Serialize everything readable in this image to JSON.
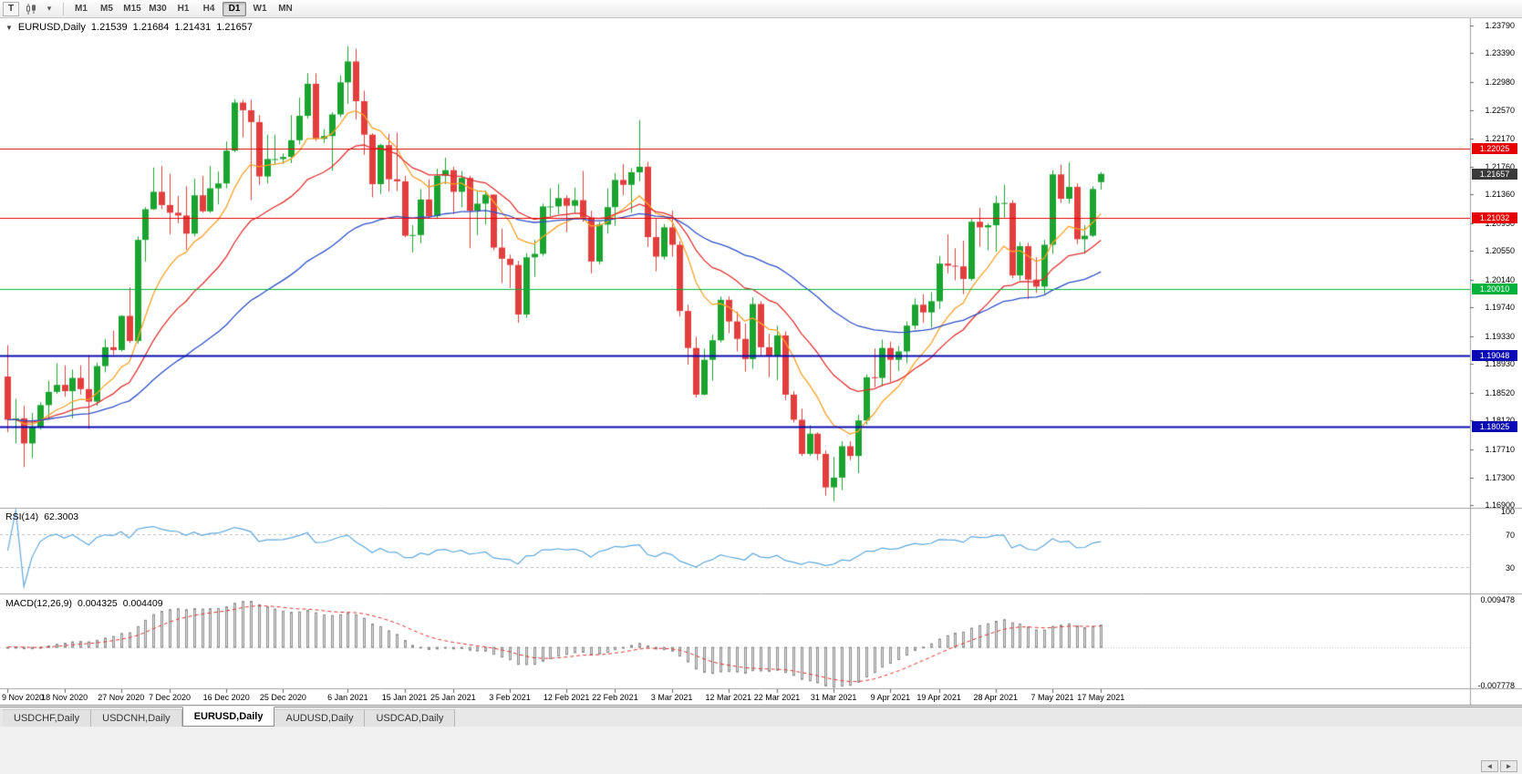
{
  "icons": {
    "one_click_trading": "▼",
    "tool_dropdown": "▾",
    "scroll_left": "◄",
    "scroll_right": "►"
  },
  "toolbar": {
    "handle_label": "T",
    "timeframes": [
      "M1",
      "M5",
      "M15",
      "M30",
      "H1",
      "H4",
      "D1",
      "W1",
      "MN"
    ],
    "active_timeframe": "D1"
  },
  "chart": {
    "title": {
      "symbol": "EURUSD,Daily",
      "open": "1.21539",
      "high": "1.21684",
      "low": "1.21431",
      "close": "1.21657"
    },
    "price_axis_labels": [
      "1.23790",
      "1.23390",
      "1.22980",
      "1.22570",
      "1.22170",
      "1.21760",
      "1.21360",
      "1.20950",
      "1.20550",
      "1.20140",
      "1.19740",
      "1.19330",
      "1.18930",
      "1.18520",
      "1.18120",
      "1.17710",
      "1.17300",
      "1.16900"
    ],
    "current_price_tag": {
      "value": "1.21657",
      "bg": "#3a3a3a"
    },
    "horizontal_lines": [
      {
        "price": 1.22025,
        "label": "1.22025",
        "color": "#e60000",
        "width": 1
      },
      {
        "price": 1.21032,
        "label": "1.21032",
        "color": "#e60000",
        "width": 1
      },
      {
        "price": 1.2001,
        "label": "1.20010",
        "color": "#00b33c",
        "width": 1
      },
      {
        "price": 1.19048,
        "label": "1.19048",
        "color": "#0a0ab4",
        "width": 2
      },
      {
        "price": 1.18025,
        "label": "1.18025",
        "color": "#0a0ab4",
        "width": 2
      }
    ]
  },
  "indicators": {
    "rsi": {
      "label": "RSI(14)",
      "value": "62.3003",
      "period": 14,
      "axis_labels": [
        {
          "value": 100,
          "text": "100"
        },
        {
          "value": 70,
          "text": "70"
        },
        {
          "value": 30,
          "text": "30"
        }
      ],
      "levels": [
        70,
        30
      ],
      "line_color": "#5fa8dc"
    },
    "macd": {
      "label": "MACD(12,26,9)",
      "macd_value": "0.004325",
      "signal_value": "0.004409",
      "fast": 12,
      "slow": 26,
      "signal_period": 9,
      "axis_top": "0.009478",
      "axis_bottom": "-0.007778",
      "scale_top": 0.009478,
      "scale_bottom": -0.007778,
      "histogram_fill": "#e4e4e4",
      "histogram_stroke": "#8e8e8e",
      "signal_color": "#e03030"
    }
  },
  "date_axis": [
    {
      "label": "9 Nov 2020",
      "index": 0
    },
    {
      "label": "18 Nov 2020",
      "index": 7
    },
    {
      "label": "27 Nov 2020",
      "index": 14
    },
    {
      "label": "7 Dec 2020",
      "index": 20
    },
    {
      "label": "16 Dec 2020",
      "index": 27
    },
    {
      "label": "25 Dec 2020",
      "index": 34
    },
    {
      "label": "6 Jan 2021",
      "index": 42
    },
    {
      "label": "15 Jan 2021",
      "index": 49
    },
    {
      "label": "25 Jan 2021",
      "index": 55
    },
    {
      "label": "3 Feb 2021",
      "index": 62
    },
    {
      "label": "12 Feb 2021",
      "index": 69
    },
    {
      "label": "22 Feb 2021",
      "index": 75
    },
    {
      "label": "3 Mar 2021",
      "index": 82
    },
    {
      "label": "12 Mar 2021",
      "index": 89
    },
    {
      "label": "22 Mar 2021",
      "index": 95
    },
    {
      "label": "31 Mar 2021",
      "index": 102
    },
    {
      "label": "9 Apr 2021",
      "index": 109
    },
    {
      "label": "19 Apr 2021",
      "index": 115
    },
    {
      "label": "28 Apr 2021",
      "index": 122
    },
    {
      "label": "7 May 2021",
      "index": 129
    },
    {
      "label": "17 May 2021",
      "index": 135
    }
  ],
  "tabs": [
    "USDCHF,Daily",
    "USDCNH,Daily",
    "EURUSD,Daily",
    "AUDUSD,Daily",
    "USDCAD,Daily"
  ],
  "active_tab": "EURUSD,Daily",
  "chart_data": {
    "type": "candlestick",
    "symbol": "EURUSD",
    "timeframe": "Daily",
    "price_range": {
      "top": 1.2389,
      "bottom": 1.1688
    },
    "bull_color": "#1aa32f",
    "bear_color": "#e23e3e",
    "overlays": [
      {
        "name": "ma-fast",
        "type": "ema",
        "period": 10,
        "color": "#f7a127"
      },
      {
        "name": "ma-mid",
        "type": "ema",
        "period": 21,
        "color": "#e03030"
      },
      {
        "name": "ma-slow",
        "type": "ema",
        "period": 50,
        "color": "#2f4fc6"
      }
    ],
    "candles": [
      [
        1.1875,
        1.192,
        1.1795,
        1.1813
      ],
      [
        1.1813,
        1.1843,
        1.1779,
        1.1815
      ],
      [
        1.1815,
        1.1833,
        1.1745,
        1.1779
      ],
      [
        1.1779,
        1.1823,
        1.1758,
        1.1803
      ],
      [
        1.1803,
        1.1838,
        1.1799,
        1.1834
      ],
      [
        1.1834,
        1.1869,
        1.1814,
        1.1853
      ],
      [
        1.1853,
        1.1894,
        1.185,
        1.1863
      ],
      [
        1.1863,
        1.1891,
        1.1846,
        1.1854
      ],
      [
        1.1854,
        1.1885,
        1.1815,
        1.1873
      ],
      [
        1.1873,
        1.1891,
        1.1849,
        1.1857
      ],
      [
        1.1857,
        1.1906,
        1.18,
        1.1839
      ],
      [
        1.1839,
        1.1895,
        1.1833,
        1.189
      ],
      [
        1.189,
        1.1929,
        1.1881,
        1.1917
      ],
      [
        1.1917,
        1.1941,
        1.1906,
        1.1913
      ],
      [
        1.1913,
        1.1963,
        1.1911,
        1.1962
      ],
      [
        1.1962,
        1.2003,
        1.1923,
        1.1926
      ],
      [
        1.1926,
        1.2076,
        1.1922,
        1.2071
      ],
      [
        1.2071,
        1.2118,
        1.204,
        1.2115
      ],
      [
        1.2115,
        1.2175,
        1.2114,
        1.214
      ],
      [
        1.214,
        1.2177,
        1.2115,
        1.2121
      ],
      [
        1.2121,
        1.2166,
        1.2079,
        1.211
      ],
      [
        1.211,
        1.2134,
        1.2095,
        1.2106
      ],
      [
        1.2106,
        1.2148,
        1.2057,
        1.208
      ],
      [
        1.208,
        1.2159,
        1.2076,
        1.2135
      ],
      [
        1.2135,
        1.2163,
        1.211,
        1.2112
      ],
      [
        1.2112,
        1.2177,
        1.211,
        1.2145
      ],
      [
        1.2145,
        1.2169,
        1.2122,
        1.2152
      ],
      [
        1.2152,
        1.2212,
        1.2145,
        1.2199
      ],
      [
        1.2199,
        1.2273,
        1.2197,
        1.2268
      ],
      [
        1.2268,
        1.2272,
        1.2218,
        1.2257
      ],
      [
        1.2257,
        1.2272,
        1.2128,
        1.224
      ],
      [
        1.224,
        1.225,
        1.215,
        1.2162
      ],
      [
        1.2162,
        1.2222,
        1.2152,
        1.2187
      ],
      [
        1.2187,
        1.2222,
        1.2179,
        1.2187
      ],
      [
        1.2187,
        1.2195,
        1.218,
        1.219
      ],
      [
        1.219,
        1.225,
        1.2181,
        1.2214
      ],
      [
        1.2214,
        1.2275,
        1.2208,
        1.2249
      ],
      [
        1.2249,
        1.231,
        1.2245,
        1.2295
      ],
      [
        1.2295,
        1.231,
        1.2213,
        1.2216
      ],
      [
        1.2216,
        1.223,
        1.221,
        1.222
      ],
      [
        1.222,
        1.2254,
        1.217,
        1.2251
      ],
      [
        1.2251,
        1.2307,
        1.2247,
        1.2297
      ],
      [
        1.2297,
        1.2349,
        1.2266,
        1.2327
      ],
      [
        1.2327,
        1.2345,
        1.2244,
        1.227
      ],
      [
        1.227,
        1.2285,
        1.2193,
        1.2222
      ],
      [
        1.2222,
        1.2224,
        1.2132,
        1.2151
      ],
      [
        1.2151,
        1.2209,
        1.2137,
        1.2207
      ],
      [
        1.2207,
        1.2223,
        1.214,
        1.2158
      ],
      [
        1.2158,
        1.2225,
        1.2141,
        1.2155
      ],
      [
        1.2155,
        1.2163,
        1.2075,
        1.2077
      ],
      [
        1.2077,
        1.2092,
        1.2053,
        1.2078
      ],
      [
        1.2078,
        1.2144,
        1.2066,
        1.2129
      ],
      [
        1.2129,
        1.2158,
        1.2102,
        1.2105
      ],
      [
        1.2105,
        1.2173,
        1.2101,
        1.2163
      ],
      [
        1.2163,
        1.2189,
        1.2151,
        1.2171
      ],
      [
        1.2171,
        1.2176,
        1.2108,
        1.214
      ],
      [
        1.214,
        1.217,
        1.2118,
        1.216
      ],
      [
        1.216,
        1.2163,
        1.2059,
        1.2113
      ],
      [
        1.2113,
        1.2142,
        1.2078,
        1.2123
      ],
      [
        1.2123,
        1.2142,
        1.2093,
        1.2136
      ],
      [
        1.2136,
        1.2136,
        1.2056,
        1.206
      ],
      [
        1.206,
        1.2087,
        1.2009,
        1.2044
      ],
      [
        1.2044,
        1.205,
        1.2002,
        1.2035
      ],
      [
        1.2035,
        1.2041,
        1.1952,
        1.1964
      ],
      [
        1.1964,
        1.2052,
        1.1959,
        1.2046
      ],
      [
        1.2046,
        1.2071,
        1.2018,
        1.2051
      ],
      [
        1.2051,
        1.2123,
        1.2048,
        1.2119
      ],
      [
        1.2119,
        1.2145,
        1.2105,
        1.2119
      ],
      [
        1.2119,
        1.2151,
        1.2108,
        1.2131
      ],
      [
        1.2131,
        1.2135,
        1.2082,
        1.212
      ],
      [
        1.212,
        1.2146,
        1.211,
        1.2128
      ],
      [
        1.2128,
        1.217,
        1.2097,
        1.2103
      ],
      [
        1.2103,
        1.2113,
        1.2023,
        1.204
      ],
      [
        1.204,
        1.2097,
        1.2036,
        1.2093
      ],
      [
        1.2093,
        1.2145,
        1.208,
        1.2118
      ],
      [
        1.2118,
        1.2167,
        1.2091,
        1.2157
      ],
      [
        1.2157,
        1.218,
        1.2135,
        1.215
      ],
      [
        1.215,
        1.2174,
        1.211,
        1.2168
      ],
      [
        1.2168,
        1.2243,
        1.2155,
        1.2176
      ],
      [
        1.2176,
        1.2183,
        1.2061,
        1.2075
      ],
      [
        1.2075,
        1.2101,
        1.2026,
        1.2047
      ],
      [
        1.2047,
        1.2094,
        1.2043,
        1.2089
      ],
      [
        1.2089,
        1.2113,
        1.2047,
        1.2064
      ],
      [
        1.2064,
        1.2069,
        1.1961,
        1.1969
      ],
      [
        1.1969,
        1.1978,
        1.1892,
        1.1916
      ],
      [
        1.1916,
        1.1932,
        1.1845,
        1.1849
      ],
      [
        1.1849,
        1.1915,
        1.1848,
        1.1899
      ],
      [
        1.1899,
        1.1935,
        1.1869,
        1.1927
      ],
      [
        1.1927,
        1.199,
        1.1924,
        1.1985
      ],
      [
        1.1985,
        1.199,
        1.1937,
        1.1954
      ],
      [
        1.1954,
        1.1968,
        1.1911,
        1.1929
      ],
      [
        1.1929,
        1.1951,
        1.1882,
        1.19
      ],
      [
        1.19,
        1.1989,
        1.1886,
        1.1979
      ],
      [
        1.1979,
        1.1983,
        1.1905,
        1.1917
      ],
      [
        1.1917,
        1.1936,
        1.1874,
        1.1905
      ],
      [
        1.1905,
        1.1948,
        1.187,
        1.1934
      ],
      [
        1.1934,
        1.194,
        1.1841,
        1.1849
      ],
      [
        1.1849,
        1.1854,
        1.1809,
        1.1813
      ],
      [
        1.1813,
        1.1829,
        1.1761,
        1.1764
      ],
      [
        1.1764,
        1.1805,
        1.1761,
        1.1793
      ],
      [
        1.1793,
        1.1795,
        1.1755,
        1.1764
      ],
      [
        1.1764,
        1.1769,
        1.1704,
        1.1716
      ],
      [
        1.1716,
        1.176,
        1.1696,
        1.173
      ],
      [
        1.173,
        1.1782,
        1.1712,
        1.1775
      ],
      [
        1.1775,
        1.1782,
        1.1755,
        1.1761
      ],
      [
        1.1761,
        1.182,
        1.1736,
        1.1812
      ],
      [
        1.1812,
        1.1878,
        1.1806,
        1.1874
      ],
      [
        1.1874,
        1.1915,
        1.186,
        1.1873
      ],
      [
        1.1873,
        1.1928,
        1.1861,
        1.1916
      ],
      [
        1.1916,
        1.1925,
        1.1867,
        1.1899
      ],
      [
        1.1899,
        1.1919,
        1.1883,
        1.1911
      ],
      [
        1.1911,
        1.1954,
        1.1894,
        1.1948
      ],
      [
        1.1948,
        1.1987,
        1.1943,
        1.1978
      ],
      [
        1.1978,
        1.1993,
        1.1952,
        1.1967
      ],
      [
        1.1967,
        1.1996,
        1.1945,
        1.1983
      ],
      [
        1.1983,
        1.2048,
        1.1972,
        1.2037
      ],
      [
        1.2037,
        1.2079,
        1.2023,
        1.2034
      ],
      [
        1.2034,
        1.2059,
        1.2013,
        1.2033
      ],
      [
        1.2033,
        1.207,
        1.1993,
        1.2015
      ],
      [
        1.2015,
        1.2101,
        1.2012,
        1.2097
      ],
      [
        1.2097,
        1.2117,
        1.2061,
        1.2089
      ],
      [
        1.2089,
        1.2095,
        1.2056,
        1.2092
      ],
      [
        1.2092,
        1.2134,
        1.2054,
        1.2124
      ],
      [
        1.2124,
        1.215,
        1.2103,
        1.2124
      ],
      [
        1.2124,
        1.2128,
        1.2016,
        1.202
      ],
      [
        1.202,
        1.2068,
        1.2013,
        1.2062
      ],
      [
        1.2062,
        1.2067,
        1.1986,
        1.2014
      ],
      [
        1.2014,
        1.2046,
        1.1995,
        1.2004
      ],
      [
        1.2004,
        1.2071,
        1.1993,
        1.2064
      ],
      [
        1.2064,
        1.2171,
        1.2051,
        1.2165
      ],
      [
        1.2165,
        1.2179,
        1.2124,
        1.213
      ],
      [
        1.213,
        1.2182,
        1.2123,
        1.2147
      ],
      [
        1.2147,
        1.2152,
        1.2065,
        1.2072
      ],
      [
        1.2072,
        1.2092,
        1.2051,
        1.2077
      ],
      [
        1.2077,
        1.2148,
        1.2075,
        1.2144
      ],
      [
        1.21539,
        1.21684,
        1.21431,
        1.21657
      ]
    ]
  }
}
